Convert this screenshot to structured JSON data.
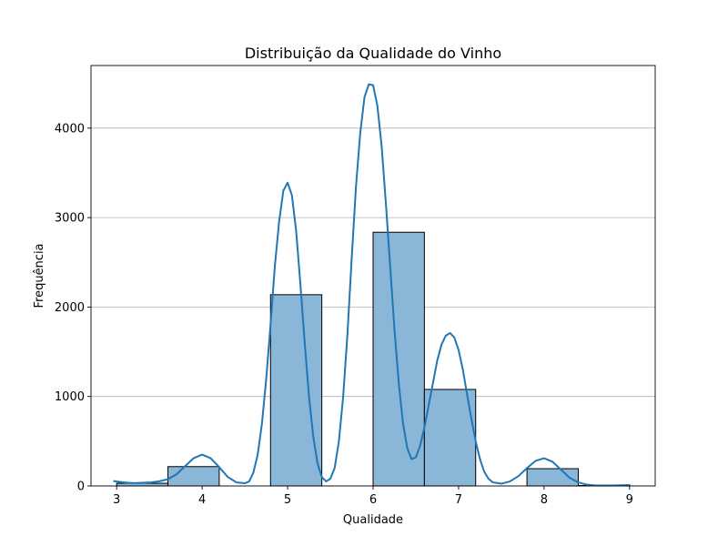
{
  "chart_data": {
    "type": "bar",
    "title": "Distribuição da Qualidade do Vinho",
    "xlabel": "Qualidade",
    "ylabel": "Frequência",
    "xlim": [
      2.7,
      9.3
    ],
    "ylim": [
      0,
      4700
    ],
    "xticks": [
      3,
      4,
      5,
      6,
      7,
      8,
      9
    ],
    "yticks": [
      0,
      1000,
      2000,
      3000,
      4000
    ],
    "grid": "horizontal",
    "bins": [
      {
        "x0": 3.0,
        "x1": 3.6,
        "count": 30
      },
      {
        "x0": 3.6,
        "x1": 4.2,
        "count": 216
      },
      {
        "x0": 4.2,
        "x1": 4.8,
        "count": 0
      },
      {
        "x0": 4.8,
        "x1": 5.4,
        "count": 2138
      },
      {
        "x0": 5.4,
        "x1": 6.0,
        "count": 0
      },
      {
        "x0": 6.0,
        "x1": 6.6,
        "count": 2836
      },
      {
        "x0": 6.6,
        "x1": 7.2,
        "count": 1079
      },
      {
        "x0": 7.2,
        "x1": 7.8,
        "count": 0
      },
      {
        "x0": 7.8,
        "x1": 8.4,
        "count": 193
      },
      {
        "x0": 8.4,
        "x1": 9.0,
        "count": 5
      }
    ],
    "kde": [
      [
        2.97,
        55
      ],
      [
        3.0,
        50
      ],
      [
        3.1,
        38
      ],
      [
        3.2,
        32
      ],
      [
        3.3,
        35
      ],
      [
        3.4,
        40
      ],
      [
        3.5,
        52
      ],
      [
        3.6,
        75
      ],
      [
        3.7,
        130
      ],
      [
        3.8,
        220
      ],
      [
        3.9,
        310
      ],
      [
        4.0,
        350
      ],
      [
        4.1,
        310
      ],
      [
        4.2,
        210
      ],
      [
        4.3,
        100
      ],
      [
        4.4,
        40
      ],
      [
        4.5,
        30
      ],
      [
        4.55,
        50
      ],
      [
        4.6,
        150
      ],
      [
        4.65,
        350
      ],
      [
        4.7,
        700
      ],
      [
        4.75,
        1200
      ],
      [
        4.8,
        1800
      ],
      [
        4.85,
        2450
      ],
      [
        4.9,
        2950
      ],
      [
        4.95,
        3300
      ],
      [
        5.0,
        3390
      ],
      [
        5.05,
        3250
      ],
      [
        5.1,
        2850
      ],
      [
        5.15,
        2250
      ],
      [
        5.2,
        1600
      ],
      [
        5.25,
        1000
      ],
      [
        5.3,
        550
      ],
      [
        5.35,
        250
      ],
      [
        5.4,
        100
      ],
      [
        5.45,
        50
      ],
      [
        5.5,
        80
      ],
      [
        5.55,
        200
      ],
      [
        5.6,
        500
      ],
      [
        5.65,
        1000
      ],
      [
        5.7,
        1700
      ],
      [
        5.75,
        2550
      ],
      [
        5.8,
        3350
      ],
      [
        5.85,
        3950
      ],
      [
        5.9,
        4350
      ],
      [
        5.95,
        4490
      ],
      [
        6.0,
        4480
      ],
      [
        6.05,
        4250
      ],
      [
        6.1,
        3800
      ],
      [
        6.15,
        3150
      ],
      [
        6.2,
        2450
      ],
      [
        6.25,
        1750
      ],
      [
        6.3,
        1150
      ],
      [
        6.35,
        700
      ],
      [
        6.4,
        420
      ],
      [
        6.45,
        300
      ],
      [
        6.5,
        320
      ],
      [
        6.55,
        450
      ],
      [
        6.6,
        650
      ],
      [
        6.65,
        900
      ],
      [
        6.7,
        1150
      ],
      [
        6.75,
        1400
      ],
      [
        6.8,
        1580
      ],
      [
        6.85,
        1680
      ],
      [
        6.9,
        1710
      ],
      [
        6.95,
        1660
      ],
      [
        7.0,
        1520
      ],
      [
        7.05,
        1300
      ],
      [
        7.1,
        1020
      ],
      [
        7.15,
        750
      ],
      [
        7.2,
        500
      ],
      [
        7.25,
        300
      ],
      [
        7.3,
        160
      ],
      [
        7.35,
        80
      ],
      [
        7.4,
        40
      ],
      [
        7.5,
        25
      ],
      [
        7.6,
        50
      ],
      [
        7.7,
        110
      ],
      [
        7.8,
        200
      ],
      [
        7.9,
        280
      ],
      [
        8.0,
        310
      ],
      [
        8.1,
        270
      ],
      [
        8.2,
        180
      ],
      [
        8.3,
        90
      ],
      [
        8.4,
        40
      ],
      [
        8.5,
        15
      ],
      [
        8.6,
        5
      ],
      [
        8.8,
        5
      ],
      [
        9.0,
        10
      ]
    ],
    "colors": {
      "bar_fill": "#8ab6d8",
      "bar_edge": "#000000",
      "kde_line": "#1f77b4",
      "grid": "#b0b0b0"
    }
  }
}
